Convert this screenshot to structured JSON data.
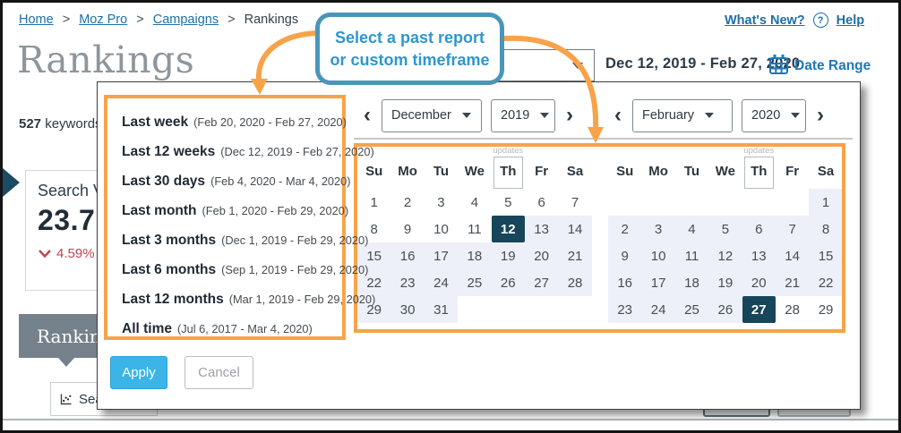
{
  "breadcrumb": {
    "links": [
      "Home",
      "Moz Pro",
      "Campaigns"
    ],
    "separator": ">",
    "current": "Rankings"
  },
  "top_links": {
    "whats_new": "What's New?",
    "help": "Help",
    "help_icon": "?"
  },
  "page": {
    "title": "Rankings",
    "keyword_count": "527",
    "keyword_label": "keywords"
  },
  "toolbar": {
    "locale": "en-US",
    "date_display": "Dec 12, 2019 - Feb 27, 2020",
    "date_range_label": "Date Range"
  },
  "metric_card": {
    "title": "Search V",
    "value": "23.7",
    "delta": "4.59%"
  },
  "rank_tab_label": "Ranking",
  "bottom_item_label": "Search V",
  "callout": {
    "line1": "Select a past report",
    "line2": "or custom timeframe"
  },
  "date_picker": {
    "apply_label": "Apply",
    "cancel_label": "Cancel",
    "prev_glyph": "‹",
    "next_glyph": "›",
    "presets": [
      {
        "label": "Last week",
        "range": "(Feb 20, 2020 - Feb 27, 2020)"
      },
      {
        "label": "Last 12 weeks",
        "range": "(Dec 12, 2019 - Feb 27, 2020)"
      },
      {
        "label": "Last 30 days",
        "range": "(Feb 4, 2020 - Mar 4, 2020)"
      },
      {
        "label": "Last month",
        "range": "(Feb 1, 2020 - Feb 29, 2020)"
      },
      {
        "label": "Last 3 months",
        "range": "(Dec 1, 2019 - Feb 29, 2020)"
      },
      {
        "label": "Last 6 months",
        "range": "(Sep 1, 2019 - Feb 29, 2020)"
      },
      {
        "label": "Last 12 months",
        "range": "(Mar 1, 2019 - Feb 29, 2020)"
      },
      {
        "label": "All time",
        "range": "(Jul 6, 2017 - Mar 4, 2020)"
      }
    ],
    "weekdays": [
      "Su",
      "Mo",
      "Tu",
      "We",
      "Th",
      "Fr",
      "Sa"
    ],
    "updates_label": "updates",
    "updates_day_index": 4,
    "calendars": [
      {
        "month": "December",
        "year": "2019",
        "weeks": [
          [
            {
              "d": "1"
            },
            {
              "d": "2"
            },
            {
              "d": "3"
            },
            {
              "d": "4"
            },
            {
              "d": "5"
            },
            {
              "d": "6"
            },
            {
              "d": "7"
            }
          ],
          [
            {
              "d": "8"
            },
            {
              "d": "9"
            },
            {
              "d": "10"
            },
            {
              "d": "11"
            },
            {
              "d": "12",
              "s": "sel"
            },
            {
              "d": "13",
              "s": "r"
            },
            {
              "d": "14",
              "s": "r"
            }
          ],
          [
            {
              "d": "15",
              "s": "r"
            },
            {
              "d": "16",
              "s": "r"
            },
            {
              "d": "17",
              "s": "r"
            },
            {
              "d": "18",
              "s": "r"
            },
            {
              "d": "19",
              "s": "r"
            },
            {
              "d": "20",
              "s": "r"
            },
            {
              "d": "21",
              "s": "r"
            }
          ],
          [
            {
              "d": "22",
              "s": "r"
            },
            {
              "d": "23",
              "s": "r"
            },
            {
              "d": "24",
              "s": "r"
            },
            {
              "d": "25",
              "s": "r"
            },
            {
              "d": "26",
              "s": "r"
            },
            {
              "d": "27",
              "s": "r"
            },
            {
              "d": "28",
              "s": "r"
            }
          ],
          [
            {
              "d": "29",
              "s": "r"
            },
            {
              "d": "30",
              "s": "r"
            },
            {
              "d": "31",
              "s": "r"
            },
            {},
            {},
            {},
            {}
          ]
        ]
      },
      {
        "month": "February",
        "year": "2020",
        "weeks": [
          [
            {},
            {},
            {},
            {},
            {},
            {},
            {
              "d": "1",
              "s": "r"
            }
          ],
          [
            {
              "d": "2",
              "s": "r"
            },
            {
              "d": "3",
              "s": "r"
            },
            {
              "d": "4",
              "s": "r"
            },
            {
              "d": "5",
              "s": "r"
            },
            {
              "d": "6",
              "s": "r"
            },
            {
              "d": "7",
              "s": "r"
            },
            {
              "d": "8",
              "s": "r"
            }
          ],
          [
            {
              "d": "9",
              "s": "r"
            },
            {
              "d": "10",
              "s": "r"
            },
            {
              "d": "11",
              "s": "r"
            },
            {
              "d": "12",
              "s": "r"
            },
            {
              "d": "13",
              "s": "r"
            },
            {
              "d": "14",
              "s": "r"
            },
            {
              "d": "15",
              "s": "r"
            }
          ],
          [
            {
              "d": "16",
              "s": "r"
            },
            {
              "d": "17",
              "s": "r"
            },
            {
              "d": "18",
              "s": "r"
            },
            {
              "d": "19",
              "s": "r"
            },
            {
              "d": "20",
              "s": "r"
            },
            {
              "d": "21",
              "s": "r"
            },
            {
              "d": "22",
              "s": "r"
            }
          ],
          [
            {
              "d": "23",
              "s": "r"
            },
            {
              "d": "24",
              "s": "r"
            },
            {
              "d": "25",
              "s": "r"
            },
            {
              "d": "26",
              "s": "r"
            },
            {
              "d": "27",
              "s": "sel"
            },
            {
              "d": "28"
            },
            {
              "d": "29"
            }
          ]
        ]
      }
    ]
  },
  "colors": {
    "annotation_orange": "#f7a34a",
    "selected_day_navy": "#17465a",
    "range_highlight": "#edf0f8",
    "link_blue": "#1d6fa8",
    "date_range_blue": "#1e78b8",
    "apply_blue": "#3bb4e7",
    "callout_border_blue": "#4a96ba",
    "callout_text_blue": "#2e96cf",
    "tab_gray": "#76828b",
    "delta_red": "#c4414f"
  }
}
